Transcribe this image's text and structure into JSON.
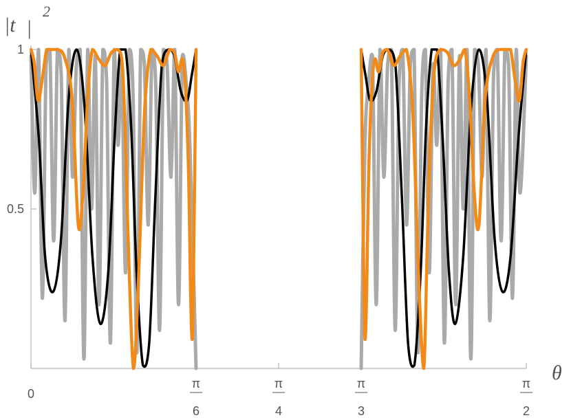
{
  "chart_data": {
    "type": "line",
    "title": "",
    "ylabel": "|t | ²",
    "ylabel_parts": {
      "main": "|t",
      "bar": "|",
      "exp": "2"
    },
    "xlabel": "θ",
    "xlim": [
      0,
      1.5708
    ],
    "ylim": [
      0,
      1
    ],
    "grid": false,
    "legend": "none",
    "x_ticks": [
      {
        "value": 0,
        "num": "0",
        "den": ""
      },
      {
        "value": 0.5236,
        "num": "π",
        "den": "6"
      },
      {
        "value": 0.7854,
        "num": "π",
        "den": "4"
      },
      {
        "value": 1.0472,
        "num": "π",
        "den": "3"
      },
      {
        "value": 1.5708,
        "num": "π",
        "den": "2"
      }
    ],
    "y_ticks": [
      {
        "value": 0.5,
        "label": "0.5"
      },
      {
        "value": 1,
        "label": "1"
      }
    ],
    "gaps": [
      [
        0.5236,
        1.0472
      ]
    ],
    "series": [
      {
        "color": "#aaaaaa",
        "width": 5,
        "shape": "rapid oscillation, fringes to about 0.05",
        "x": [
          0,
          0.012,
          0.024,
          0.036,
          0.048,
          0.06,
          0.072,
          0.084,
          0.096,
          0.108,
          0.12,
          0.132,
          0.144,
          0.156,
          0.168,
          0.18,
          0.192,
          0.204,
          0.216,
          0.228,
          0.24,
          0.252,
          0.264,
          0.276,
          0.288,
          0.3,
          0.312,
          0.324,
          0.336,
          0.348,
          0.36,
          0.372,
          0.384,
          0.396,
          0.408,
          0.42,
          0.432,
          0.444,
          0.456,
          0.468,
          0.48,
          0.492,
          0.504,
          0.5236
        ],
        "y": [
          0.98,
          0.55,
          1.0,
          0.22,
          0.95,
          1.0,
          0.4,
          1.0,
          0.92,
          0.15,
          1.0,
          0.6,
          0.95,
          1.0,
          0.03,
          1.0,
          0.5,
          0.98,
          0.2,
          1.0,
          0.9,
          0.08,
          1.0,
          0.7,
          0.95,
          0.3,
          1.0,
          0.85,
          0.05,
          1.0,
          0.95,
          0.45,
          1.0,
          0.88,
          0.12,
          1.0,
          0.95,
          0.6,
          1.0,
          0.2,
          0.98,
          0.9,
          0.7,
          0.0
        ]
      },
      {
        "color": "#aaaaaa",
        "width": 5,
        "shape": "mirror of the first group",
        "x": [
          1.0472,
          1.059,
          1.071,
          1.083,
          1.095,
          1.107,
          1.119,
          1.131,
          1.143,
          1.155,
          1.167,
          1.179,
          1.191,
          1.203,
          1.215,
          1.227,
          1.239,
          1.251,
          1.263,
          1.275,
          1.287,
          1.299,
          1.311,
          1.323,
          1.335,
          1.347,
          1.359,
          1.371,
          1.383,
          1.395,
          1.407,
          1.419,
          1.431,
          1.443,
          1.455,
          1.467,
          1.479,
          1.491,
          1.503,
          1.515,
          1.527,
          1.539,
          1.551,
          1.5708
        ],
        "y": [
          0.0,
          0.7,
          0.9,
          0.98,
          0.2,
          1.0,
          0.6,
          0.95,
          1.0,
          0.12,
          0.88,
          1.0,
          0.45,
          0.95,
          1.0,
          0.05,
          0.85,
          1.0,
          0.3,
          0.95,
          0.7,
          1.0,
          0.08,
          0.9,
          1.0,
          0.2,
          0.98,
          0.5,
          1.0,
          0.03,
          1.0,
          0.95,
          0.6,
          1.0,
          0.15,
          0.92,
          1.0,
          0.4,
          1.0,
          0.95,
          0.22,
          1.0,
          0.55,
          0.98
        ]
      },
      {
        "color": "#000000",
        "width": 3.5,
        "shape": "smooth fringes",
        "x": [
          0,
          0.025,
          0.045,
          0.07,
          0.095,
          0.12,
          0.145,
          0.17,
          0.195,
          0.22,
          0.245,
          0.265,
          0.283,
          0.3,
          0.318,
          0.335,
          0.355,
          0.375,
          0.395,
          0.415,
          0.435,
          0.455,
          0.475,
          0.495,
          0.51,
          0.5236
        ],
        "y": [
          1.0,
          0.72,
          0.35,
          0.24,
          0.4,
          0.85,
          1.0,
          0.82,
          0.35,
          0.14,
          0.3,
          0.72,
          1.0,
          1.0,
          0.75,
          0.3,
          0.01,
          0.08,
          0.55,
          0.95,
          1.0,
          0.98,
          0.87,
          0.84,
          0.92,
          1.0
        ]
      },
      {
        "color": "#000000",
        "width": 3.5,
        "shape": "mirror of the first group",
        "x": [
          1.0472,
          1.0608,
          1.0758,
          1.0958,
          1.1158,
          1.1358,
          1.1558,
          1.1758,
          1.1958,
          1.2158,
          1.2358,
          1.2528,
          1.2708,
          1.2878,
          1.3058,
          1.3258,
          1.3458,
          1.3708,
          1.3958,
          1.4208,
          1.4458,
          1.4708,
          1.4958,
          1.5208,
          1.5458,
          1.5708
        ],
        "y": [
          1.0,
          0.92,
          0.84,
          0.87,
          0.98,
          1.0,
          0.95,
          0.55,
          0.08,
          0.01,
          0.3,
          0.75,
          1.0,
          1.0,
          0.72,
          0.3,
          0.14,
          0.35,
          0.82,
          1.0,
          0.85,
          0.4,
          0.24,
          0.35,
          0.72,
          1.0
        ]
      },
      {
        "color": "#f28a1a",
        "width": 4.5,
        "shape": "smooth fringes",
        "x": [
          0,
          0.01,
          0.022,
          0.035,
          0.05,
          0.065,
          0.085,
          0.105,
          0.13,
          0.15,
          0.165,
          0.18,
          0.195,
          0.215,
          0.235,
          0.255,
          0.275,
          0.29,
          0.3,
          0.31,
          0.325,
          0.34,
          0.36,
          0.38,
          0.4,
          0.42,
          0.44,
          0.455,
          0.468,
          0.48,
          0.49,
          0.5,
          0.506,
          0.512,
          0.518,
          0.5236
        ],
        "y": [
          1.0,
          0.96,
          0.84,
          0.9,
          1.0,
          1.0,
          1.0,
          0.98,
          0.85,
          0.45,
          0.55,
          0.85,
          1.0,
          0.97,
          0.95,
          0.99,
          1.0,
          0.95,
          0.7,
          0.35,
          0.0,
          0.25,
          0.8,
          1.0,
          0.98,
          0.95,
          1.0,
          0.99,
          0.93,
          0.97,
          0.88,
          0.6,
          0.25,
          0.1,
          0.5,
          1.0
        ]
      },
      {
        "color": "#f28a1a",
        "width": 4.5,
        "shape": "mirror of the first group",
        "x": [
          1.0472,
          1.0528,
          1.0588,
          1.0648,
          1.0708,
          1.0808,
          1.0908,
          1.1028,
          1.1158,
          1.1308,
          1.1508,
          1.1708,
          1.1908,
          1.2108,
          1.2308,
          1.2458,
          1.2558,
          1.2658,
          1.2808,
          1.3008,
          1.3208,
          1.3408,
          1.3608,
          1.3758,
          1.3908,
          1.4058,
          1.4208,
          1.4408,
          1.4658,
          1.4858,
          1.5058,
          1.5208,
          1.5358,
          1.5488,
          1.5608,
          1.5708
        ],
        "y": [
          1.0,
          0.5,
          0.1,
          0.25,
          0.6,
          0.88,
          0.97,
          0.93,
          0.99,
          1.0,
          0.95,
          0.98,
          1.0,
          0.8,
          0.25,
          0.0,
          0.35,
          0.7,
          0.95,
          1.0,
          0.99,
          0.95,
          0.97,
          1.0,
          0.85,
          0.55,
          0.45,
          0.85,
          0.98,
          1.0,
          1.0,
          1.0,
          0.9,
          0.84,
          0.96,
          1.0
        ]
      }
    ]
  }
}
